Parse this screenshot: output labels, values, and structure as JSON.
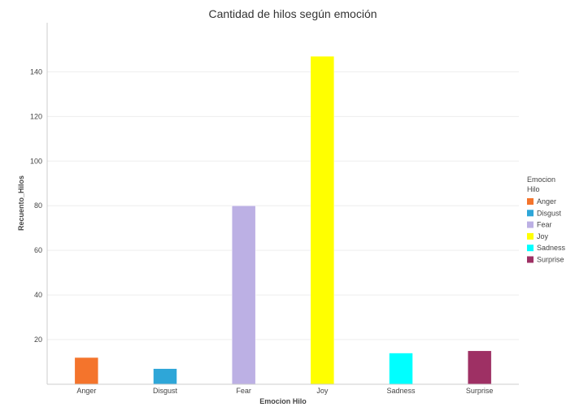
{
  "chart_data": {
    "type": "bar",
    "title": "Cantidad de hilos según emoción",
    "xlabel": "Emocion Hilo",
    "ylabel": "Recuento_Hilos",
    "categories": [
      "Anger",
      "Disgust",
      "Fear",
      "Joy",
      "Sadness",
      "Surprise"
    ],
    "values": [
      12,
      7,
      80,
      147,
      14,
      15
    ],
    "colors": [
      "#f4742c",
      "#2ea6d8",
      "#bcb0e4",
      "#ffff00",
      "#00ffff",
      "#9e3064"
    ],
    "ylim": [
      0,
      162
    ],
    "yticks": [
      20,
      40,
      60,
      80,
      100,
      120,
      140
    ],
    "grid": true,
    "legend": {
      "title_lines": [
        "Emocion",
        "Hilo"
      ],
      "placement": "right"
    }
  }
}
